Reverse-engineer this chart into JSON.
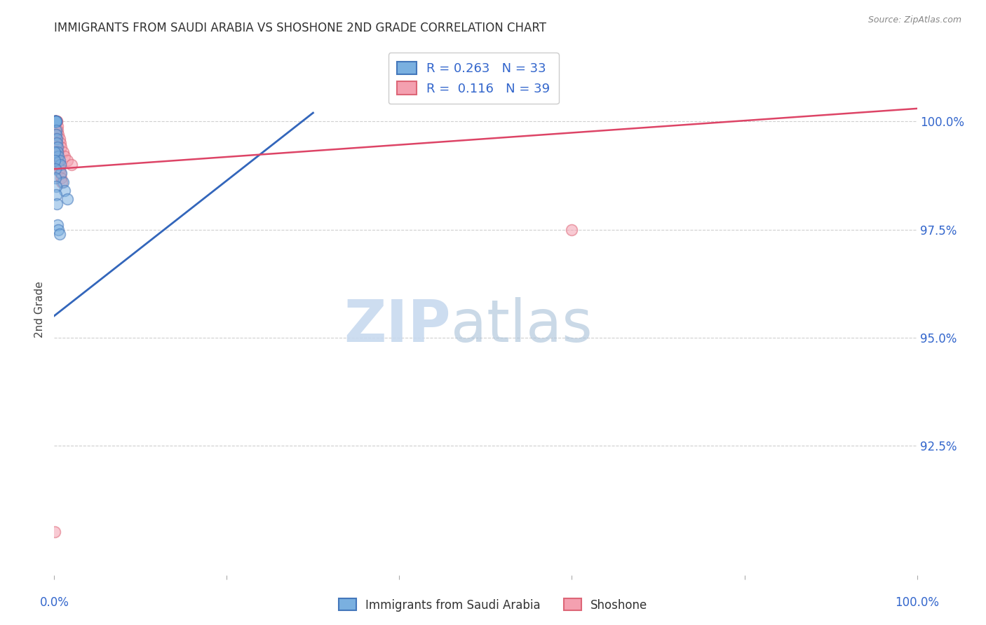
{
  "title": "IMMIGRANTS FROM SAUDI ARABIA VS SHOSHONE 2ND GRADE CORRELATION CHART",
  "source": "Source: ZipAtlas.com",
  "ylabel": "2nd Grade",
  "ytick_values": [
    100.0,
    97.5,
    95.0,
    92.5
  ],
  "xlim": [
    0.0,
    100.0
  ],
  "ylim": [
    89.5,
    101.8
  ],
  "blue_scatter_x": [
    0.05,
    0.08,
    0.1,
    0.1,
    0.12,
    0.12,
    0.15,
    0.15,
    0.18,
    0.2,
    0.22,
    0.25,
    0.28,
    0.3,
    0.35,
    0.4,
    0.5,
    0.6,
    0.7,
    0.8,
    1.0,
    1.2,
    1.5,
    0.05,
    0.08,
    0.1,
    0.15,
    0.2,
    0.25,
    0.3,
    0.4,
    0.5,
    0.6
  ],
  "blue_scatter_y": [
    100.0,
    100.0,
    100.0,
    100.0,
    100.0,
    100.0,
    100.0,
    100.0,
    100.0,
    100.0,
    99.8,
    99.7,
    99.6,
    99.5,
    99.4,
    99.3,
    99.2,
    99.1,
    99.0,
    98.8,
    98.6,
    98.4,
    98.2,
    99.3,
    99.1,
    98.9,
    98.7,
    98.5,
    98.3,
    98.1,
    97.6,
    97.5,
    97.4
  ],
  "pink_scatter_x": [
    0.05,
    0.08,
    0.1,
    0.12,
    0.15,
    0.18,
    0.2,
    0.25,
    0.28,
    0.3,
    0.35,
    0.4,
    0.5,
    0.6,
    0.7,
    0.8,
    1.0,
    1.2,
    1.5,
    2.0,
    0.1,
    0.15,
    0.2,
    0.25,
    0.3,
    0.35,
    0.08,
    0.12,
    0.18,
    0.22,
    0.28,
    0.4,
    0.5,
    0.6,
    0.7,
    0.8,
    0.9,
    60.0,
    0.05
  ],
  "pink_scatter_y": [
    100.0,
    100.0,
    100.0,
    100.0,
    100.0,
    100.0,
    100.0,
    100.0,
    100.0,
    100.0,
    99.9,
    99.8,
    99.7,
    99.6,
    99.5,
    99.4,
    99.3,
    99.2,
    99.1,
    99.0,
    99.8,
    99.7,
    99.6,
    99.5,
    99.4,
    99.3,
    99.6,
    99.5,
    99.4,
    99.3,
    99.2,
    99.1,
    99.0,
    98.9,
    98.8,
    98.7,
    98.6,
    97.5,
    90.5
  ],
  "blue_line_x": [
    0.0,
    30.0
  ],
  "blue_line_y": [
    95.5,
    100.2
  ],
  "pink_line_x": [
    0.0,
    100.0
  ],
  "pink_line_y": [
    98.9,
    100.3
  ],
  "blue_R": "0.263",
  "blue_N": "33",
  "pink_R": "0.116",
  "pink_N": "39",
  "blue_color": "#7ab0e0",
  "pink_color": "#f4a0b0",
  "blue_edge_color": "#4477bb",
  "pink_edge_color": "#dd6677",
  "blue_line_color": "#3366bb",
  "pink_line_color": "#dd4466",
  "marker_size": 130,
  "marker_alpha": 0.55,
  "bg_color": "#ffffff",
  "grid_color": "#bbbbbb",
  "title_color": "#333333",
  "axis_label_color": "#3366cc",
  "watermark_zip_color": "#c5d8ee",
  "watermark_atlas_color": "#a8c0d8",
  "legend_label_blue": "Immigrants from Saudi Arabia",
  "legend_label_pink": "Shoshone"
}
